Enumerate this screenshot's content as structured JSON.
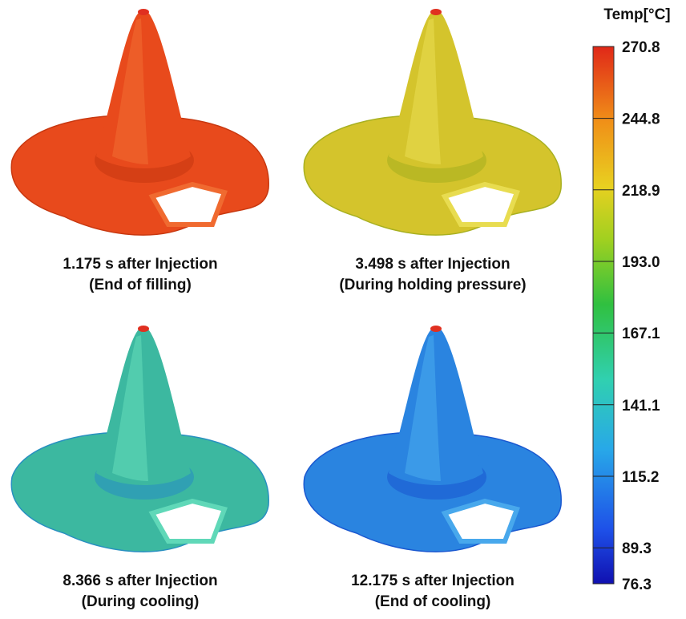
{
  "panels": [
    {
      "time": "1.175 s after Injection",
      "stage": "(End of filling)"
    },
    {
      "time": "3.498 s after Injection",
      "stage": "(During holding pressure)"
    },
    {
      "time": "8.366 s after Injection",
      "stage": "(During cooling)"
    },
    {
      "time": "12.175 s after Injection",
      "stage": "(End of cooling)"
    }
  ],
  "colorbar": {
    "title": "Temp[°C]",
    "range": [
      76.3,
      270.8
    ],
    "ticks": [
      270.8,
      244.8,
      218.9,
      {
        "value": 193.0,
        "label": "193.0"
      },
      167.1,
      141.1,
      115.2,
      89.3,
      76.3
    ]
  }
}
